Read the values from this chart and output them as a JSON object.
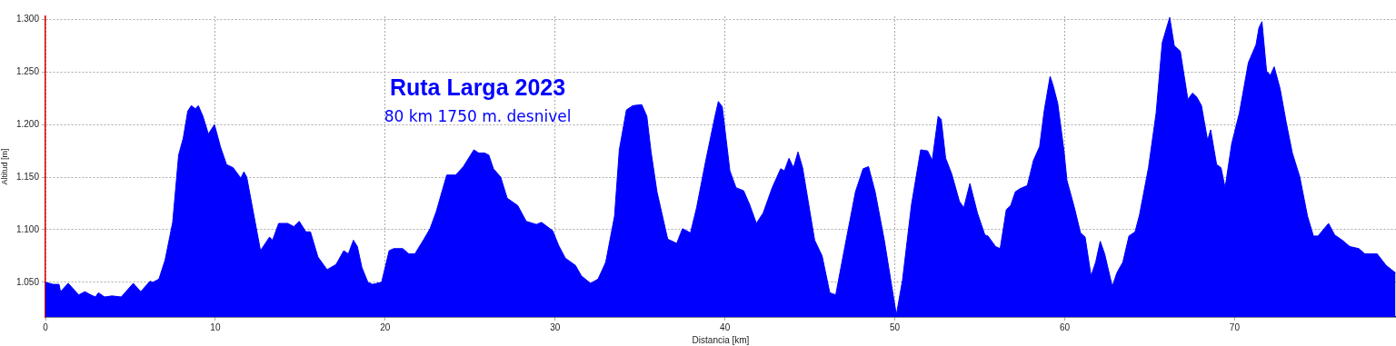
{
  "chart_data": {
    "type": "area",
    "title": "Ruta Larga 2023",
    "subtitle": "80 km 1750 m. desnivel",
    "xlabel": "Distancia [km]",
    "ylabel": "Altitud [m]",
    "xlim": [
      0,
      79.5
    ],
    "ylim": [
      1017,
      1303
    ],
    "xticks": [
      0,
      10,
      20,
      30,
      40,
      50,
      60,
      70
    ],
    "yticks": [
      {
        "value": 1050,
        "label": "1.050"
      },
      {
        "value": 1100,
        "label": "1.100"
      },
      {
        "value": 1150,
        "label": "1.150"
      },
      {
        "value": 1200,
        "label": "1.200"
      },
      {
        "value": 1250,
        "label": "1.250"
      },
      {
        "value": 1300,
        "label": "1.300"
      }
    ],
    "grid": true,
    "series": [
      {
        "color": "#0000ff",
        "x": [
          0,
          0.45,
          0.8,
          0.89,
          1.34,
          1.96,
          2.32,
          2.67,
          2.94,
          3.12,
          3.48,
          3.92,
          4.46,
          5.17,
          5.61,
          6.15,
          6.33,
          6.68,
          7.04,
          7.49,
          7.84,
          8.11,
          8.38,
          8.59,
          8.82,
          9.0,
          9.27,
          9.59,
          9.95,
          10.3,
          10.66,
          11.05,
          11.5,
          11.68,
          11.85,
          12.21,
          12.66,
          13.19,
          13.37,
          13.73,
          14.26,
          14.62,
          14.94,
          15.33,
          15.6,
          16.04,
          16.58,
          17.11,
          17.56,
          17.83,
          18.13,
          18.36,
          18.63,
          18.98,
          19.25,
          19.79,
          20.23,
          20.5,
          21.03,
          21.39,
          21.75,
          22.28,
          22.64,
          23.0,
          23.62,
          24.15,
          24.6,
          25.22,
          25.5,
          25.85,
          26.1,
          26.37,
          26.8,
          27.18,
          27.8,
          28.3,
          28.9,
          29.2,
          29.86,
          30.21,
          30.6,
          31.2,
          31.55,
          32.09,
          32.53,
          32.98,
          33.5,
          33.78,
          34.2,
          34.58,
          35.1,
          35.4,
          35.65,
          36.0,
          36.63,
          37.16,
          37.5,
          37.97,
          38.33,
          38.86,
          39.4,
          39.61,
          39.84,
          40.29,
          40.65,
          41.1,
          41.45,
          41.85,
          42.25,
          42.78,
          43.28,
          43.5,
          43.77,
          44.03,
          44.3,
          44.57,
          45.28,
          45.72,
          46.17,
          46.52,
          47.06,
          47.68,
          48.13,
          48.45,
          48.84,
          49.38,
          49.82,
          50.09,
          50.45,
          50.98,
          51.52,
          51.93,
          52.2,
          52.55,
          52.73,
          52.99,
          53.35,
          53.8,
          54.06,
          54.42,
          54.86,
          55.3,
          55.48,
          55.93,
          56.2,
          56.56,
          56.82,
          57.09,
          57.36,
          57.8,
          58.16,
          58.52,
          58.79,
          59.14,
          59.32,
          59.59,
          59.95,
          60.13,
          60.57,
          60.93,
          61.2,
          61.55,
          61.82,
          62.09,
          62.35,
          62.8,
          63.07,
          63.42,
          63.78,
          64.14,
          64.4,
          64.93,
          65.38,
          65.74,
          66.18,
          66.45,
          66.8,
          67.25,
          67.52,
          67.78,
          68.05,
          68.41,
          68.59,
          68.94,
          69.2,
          69.44,
          69.83,
          70.28,
          70.81,
          71.26,
          71.43,
          71.61,
          71.88,
          72.11,
          72.33,
          72.68,
          73.04,
          73.4,
          73.84,
          74.29,
          74.64,
          74.91,
          75.53,
          75.89,
          76.34,
          76.78,
          77.31,
          77.67,
          78.39,
          78.92,
          79.47
        ],
        "values": [
          1050,
          1048,
          1048,
          1041,
          1049,
          1038,
          1041,
          1038,
          1036,
          1040,
          1036,
          1037,
          1036,
          1049,
          1041,
          1051,
          1050,
          1053,
          1071,
          1107,
          1171,
          1187,
          1213,
          1218,
          1215,
          1218,
          1208,
          1191,
          1200,
          1179,
          1162,
          1159,
          1149,
          1155,
          1150,
          1119,
          1080,
          1093,
          1090,
          1106,
          1106,
          1103,
          1108,
          1098,
          1098,
          1074,
          1062,
          1067,
          1080,
          1077,
          1090,
          1084,
          1064,
          1050,
          1048,
          1050,
          1080,
          1082,
          1082,
          1077,
          1077,
          1091,
          1101,
          1117,
          1152,
          1152,
          1160,
          1176,
          1173,
          1173,
          1171,
          1158,
          1150,
          1130,
          1123,
          1108,
          1105,
          1107,
          1099,
          1085,
          1073,
          1066,
          1056,
          1049,
          1053,
          1069,
          1113,
          1176,
          1214,
          1218,
          1219,
          1208,
          1174,
          1136,
          1091,
          1087,
          1101,
          1097,
          1121,
          1165,
          1207,
          1222,
          1217,
          1156,
          1140,
          1137,
          1124,
          1106,
          1116,
          1140,
          1158,
          1156,
          1168,
          1159,
          1174,
          1159,
          1090,
          1075,
          1040,
          1038,
          1084,
          1136,
          1158,
          1160,
          1136,
          1090,
          1046,
          1019,
          1052,
          1124,
          1176,
          1175,
          1166,
          1208,
          1205,
          1168,
          1153,
          1127,
          1121,
          1144,
          1116,
          1095,
          1094,
          1084,
          1082,
          1119,
          1123,
          1136,
          1139,
          1142,
          1166,
          1179,
          1213,
          1246,
          1237,
          1220,
          1176,
          1147,
          1121,
          1097,
          1093,
          1056,
          1069,
          1089,
          1077,
          1046,
          1059,
          1069,
          1094,
          1098,
          1114,
          1159,
          1211,
          1278,
          1302,
          1275,
          1270,
          1224,
          1230,
          1226,
          1218,
          1185,
          1195,
          1162,
          1159,
          1140,
          1182,
          1211,
          1259,
          1276,
          1292,
          1298,
          1251,
          1247,
          1255,
          1234,
          1202,
          1173,
          1150,
          1113,
          1094,
          1094,
          1106,
          1095,
          1090,
          1084,
          1082,
          1077,
          1077,
          1066,
          1059
        ]
      }
    ]
  }
}
